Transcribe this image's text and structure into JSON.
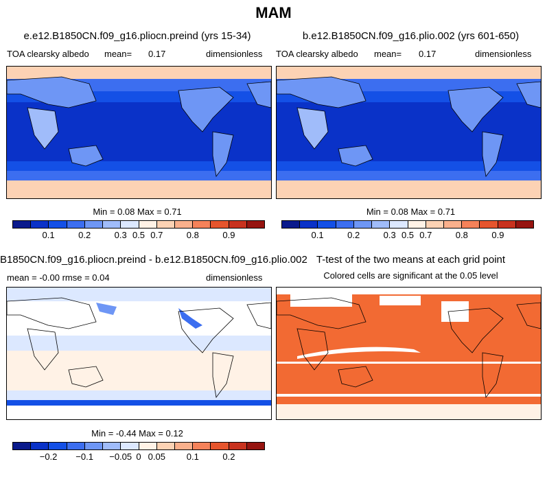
{
  "figure_title": "MAM",
  "palettes": {
    "albedo": [
      "#0a1a8c",
      "#0a32c8",
      "#1450e6",
      "#3c6ef0",
      "#6e96f5",
      "#a0bcfa",
      "#dce8ff",
      "#fff2e6",
      "#fcd2b4",
      "#fab08c",
      "#f5825a",
      "#e6552d",
      "#c8321e",
      "#961410"
    ],
    "diff": [
      "#0a1a8c",
      "#0a32c8",
      "#1450e6",
      "#3c6ef0",
      "#6e96f5",
      "#a0bcfa",
      "#dce8ff",
      "#fff2e6",
      "#fcd2b4",
      "#fab08c",
      "#f5825a",
      "#e6552d",
      "#c8321e",
      "#961410"
    ]
  },
  "panels": {
    "p1": {
      "title": "e.e12.B1850CN.f09_g16.pliocn.preind (yrs 15-34)",
      "variable": "TOA clearsky albedo",
      "mean_label": "mean=",
      "mean_value": "0.17",
      "units": "dimensionless",
      "stats": "Min =   0.08 Max =   0.71",
      "colorbar_labels": [
        "0.1",
        "0.2",
        "0.3",
        "0.5",
        "0.7",
        "0.8",
        "0.9"
      ]
    },
    "p2": {
      "title": "b.e12.B1850CN.f09_g16.plio.002 (yrs 601-650)",
      "variable": "TOA clearsky albedo",
      "mean_label": "mean=",
      "mean_value": "0.17",
      "units": "dimensionless",
      "stats": "Min =   0.08 Max =   0.71",
      "colorbar_labels": [
        "0.1",
        "0.2",
        "0.3",
        "0.5",
        "0.7",
        "0.8",
        "0.9"
      ]
    },
    "p3": {
      "title": "B1850CN.f09_g16.pliocn.preind - b.e12.B1850CN.f09_g16.plio.002",
      "stats_line": "mean =   -0.00      rmse =    0.04",
      "units": "dimensionless",
      "stats": "Min =   -0.44 Max =    0.12",
      "colorbar_labels": [
        "-0.2",
        "-0.1",
        "-0.05",
        "0",
        "0.05",
        "0.1",
        "0.2"
      ]
    },
    "p4": {
      "title": "T-test of the two means at each grid point",
      "subtitle": "Colored cells are significant at the 0.05 level",
      "fill_color": "#f26a33"
    }
  },
  "chart_data": [
    {
      "type": "heatmap",
      "title": "e.e12.B1850CN.f09_g16.pliocn.preind (yrs 15-34)",
      "variable": "TOA clearsky albedo",
      "mean": 0.17,
      "min": 0.08,
      "max": 0.71,
      "units": "dimensionless",
      "colorbar_ticks": [
        0.1,
        0.2,
        0.3,
        0.5,
        0.7,
        0.8,
        0.9
      ]
    },
    {
      "type": "heatmap",
      "title": "b.e12.B1850CN.f09_g16.plio.002 (yrs 601-650)",
      "variable": "TOA clearsky albedo",
      "mean": 0.17,
      "min": 0.08,
      "max": 0.71,
      "units": "dimensionless",
      "colorbar_ticks": [
        0.1,
        0.2,
        0.3,
        0.5,
        0.7,
        0.8,
        0.9
      ]
    },
    {
      "type": "heatmap",
      "title": "B1850CN.f09_g16.pliocn.preind - b.e12.B1850CN.f09_g16.plio.002",
      "mean": -0.0,
      "rmse": 0.04,
      "min": -0.44,
      "max": 0.12,
      "units": "dimensionless",
      "colorbar_ticks": [
        -0.2,
        -0.1,
        -0.05,
        0,
        0.05,
        0.1,
        0.2
      ]
    },
    {
      "type": "heatmap",
      "title": "T-test of the two means at each grid point",
      "subtitle": "Colored cells are significant at the 0.05 level",
      "significance_level": 0.05
    }
  ]
}
